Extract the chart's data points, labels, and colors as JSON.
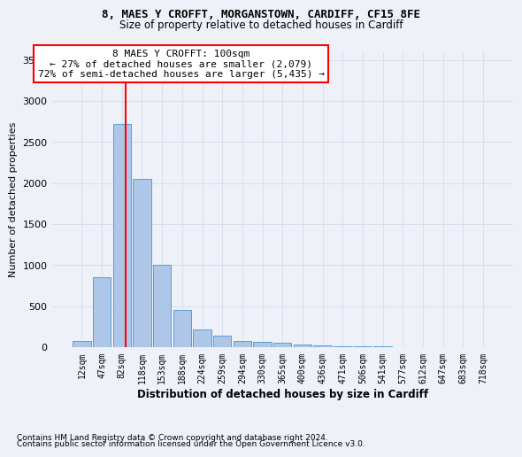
{
  "title1": "8, MAES Y CROFFT, MORGANSTOWN, CARDIFF, CF15 8FE",
  "title2": "Size of property relative to detached houses in Cardiff",
  "xlabel": "Distribution of detached houses by size in Cardiff",
  "ylabel": "Number of detached properties",
  "footnote1": "Contains HM Land Registry data © Crown copyright and database right 2024.",
  "footnote2": "Contains public sector information licensed under the Open Government Licence v3.0.",
  "categories": [
    "12sqm",
    "47sqm",
    "82sqm",
    "118sqm",
    "153sqm",
    "188sqm",
    "224sqm",
    "259sqm",
    "294sqm",
    "330sqm",
    "365sqm",
    "400sqm",
    "436sqm",
    "471sqm",
    "506sqm",
    "541sqm",
    "577sqm",
    "612sqm",
    "647sqm",
    "683sqm",
    "718sqm"
  ],
  "values": [
    75,
    850,
    2720,
    2050,
    1000,
    450,
    210,
    140,
    80,
    60,
    55,
    30,
    25,
    10,
    5,
    5,
    3,
    2,
    2,
    2,
    1
  ],
  "bar_color": "#aec6e8",
  "bar_edge_color": "#5a9fd4",
  "annotation_text_line1": "8 MAES Y CROFFT: 100sqm",
  "annotation_text_line2": "← 27% of detached houses are smaller (2,079)",
  "annotation_text_line3": "72% of semi-detached houses are larger (5,435) →",
  "annotation_box_color": "white",
  "annotation_box_edge_color": "red",
  "vline_color": "red",
  "vline_x": 2.2,
  "ylim": [
    0,
    3600
  ],
  "yticks": [
    0,
    500,
    1000,
    1500,
    2000,
    2500,
    3000,
    3500
  ],
  "background_color": "#eef2f8",
  "grid_color": "#d8e0f0"
}
